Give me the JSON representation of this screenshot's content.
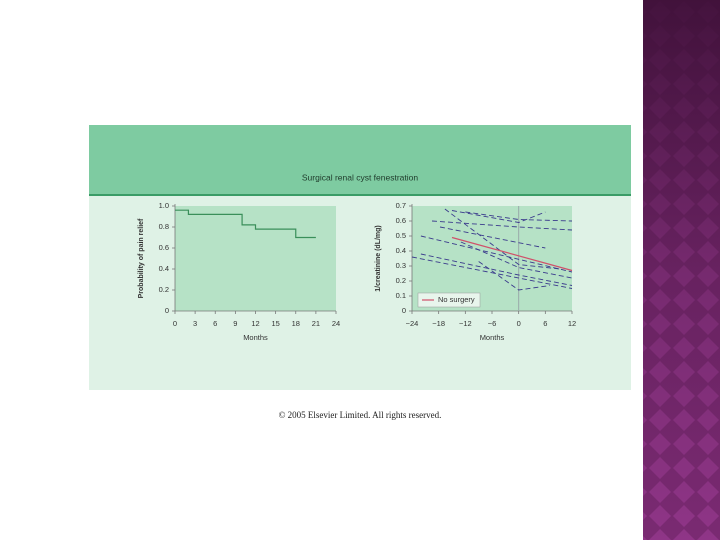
{
  "figure_title": "Surgical renal cyst fenestration",
  "copyright": "© 2005 Elsevier Limited. All rights reserved.",
  "chart_data": [
    {
      "type": "line",
      "step": true,
      "y_label": "Probability of pain relief",
      "x_label": "Months",
      "xlim": [
        0,
        24
      ],
      "xticks": [
        0,
        3,
        6,
        9,
        12,
        15,
        18,
        21,
        24
      ],
      "ylim": [
        0,
        1
      ],
      "yticks": [
        0,
        0.2,
        0.4,
        0.6,
        0.8,
        {
          "value": 1,
          "label": "1.0"
        }
      ],
      "series": [
        {
          "color": "#3a8f5a",
          "style": "solid",
          "x": [
            0,
            2,
            10,
            12,
            18,
            21
          ],
          "values": [
            0.96,
            0.92,
            0.82,
            0.78,
            0.7,
            0.7
          ]
        }
      ]
    },
    {
      "type": "line",
      "step": false,
      "y_label": "1/creatinine (dL/mg)",
      "x_label": "Months",
      "xlim": [
        -24,
        12
      ],
      "xticks": [
        {
          "value": -24,
          "label": "−24"
        },
        {
          "value": -18,
          "label": "−18"
        },
        {
          "value": -12,
          "label": "−12"
        },
        {
          "value": -6,
          "label": "−6"
        },
        0,
        6,
        12
      ],
      "ylim": [
        0,
        0.7
      ],
      "yticks": [
        0,
        0.1,
        0.2,
        0.3,
        0.4,
        0.5,
        0.6,
        0.7
      ],
      "reference_x": 0,
      "legend": "bottom-left",
      "series": [
        {
          "color": "#3a3a8c",
          "style": "dashed",
          "x": [
            -15,
            0,
            6
          ],
          "values": [
            0.67,
            0.59,
            0.66
          ]
        },
        {
          "color": "#3a3a8c",
          "style": "dashed",
          "x": [
            -12,
            0,
            12
          ],
          "values": [
            0.66,
            0.61,
            0.6
          ]
        },
        {
          "color": "#3a3a8c",
          "style": "dashed",
          "x": [
            -19.5,
            0,
            12
          ],
          "values": [
            0.6,
            0.56,
            0.54
          ]
        },
        {
          "color": "#3a3a8c",
          "style": "dashed",
          "x": [
            -17.7,
            6
          ],
          "values": [
            0.56,
            0.42
          ]
        },
        {
          "color": "#3a3a8c",
          "style": "dashed",
          "x": [
            -22,
            12
          ],
          "values": [
            0.5,
            0.26
          ]
        },
        {
          "color": "#3a3a8c",
          "style": "dashed",
          "x": [
            -22,
            0,
            12
          ],
          "values": [
            0.38,
            0.24,
            0.17
          ]
        },
        {
          "color": "#3a3a8c",
          "style": "dashed",
          "x": [
            -13,
            0,
            12
          ],
          "values": [
            0.46,
            0.29,
            0.22
          ]
        },
        {
          "color": "#3a3a8c",
          "style": "dashed",
          "x": [
            -24,
            12
          ],
          "values": [
            0.36,
            0.15
          ]
        },
        {
          "color": "#3a3a8c",
          "style": "dashed",
          "x": [
            -9,
            0,
            7
          ],
          "values": [
            0.33,
            0.14,
            0.17
          ]
        },
        {
          "color": "#3a3a8c",
          "style": "dashed",
          "x": [
            -16.6,
            0,
            9.3
          ],
          "values": [
            0.68,
            0.31,
            0.28
          ]
        },
        {
          "name": "No surgery",
          "color": "#d0506a",
          "style": "solid",
          "x": [
            -15,
            12
          ],
          "values": [
            0.49,
            0.27
          ]
        }
      ]
    }
  ]
}
